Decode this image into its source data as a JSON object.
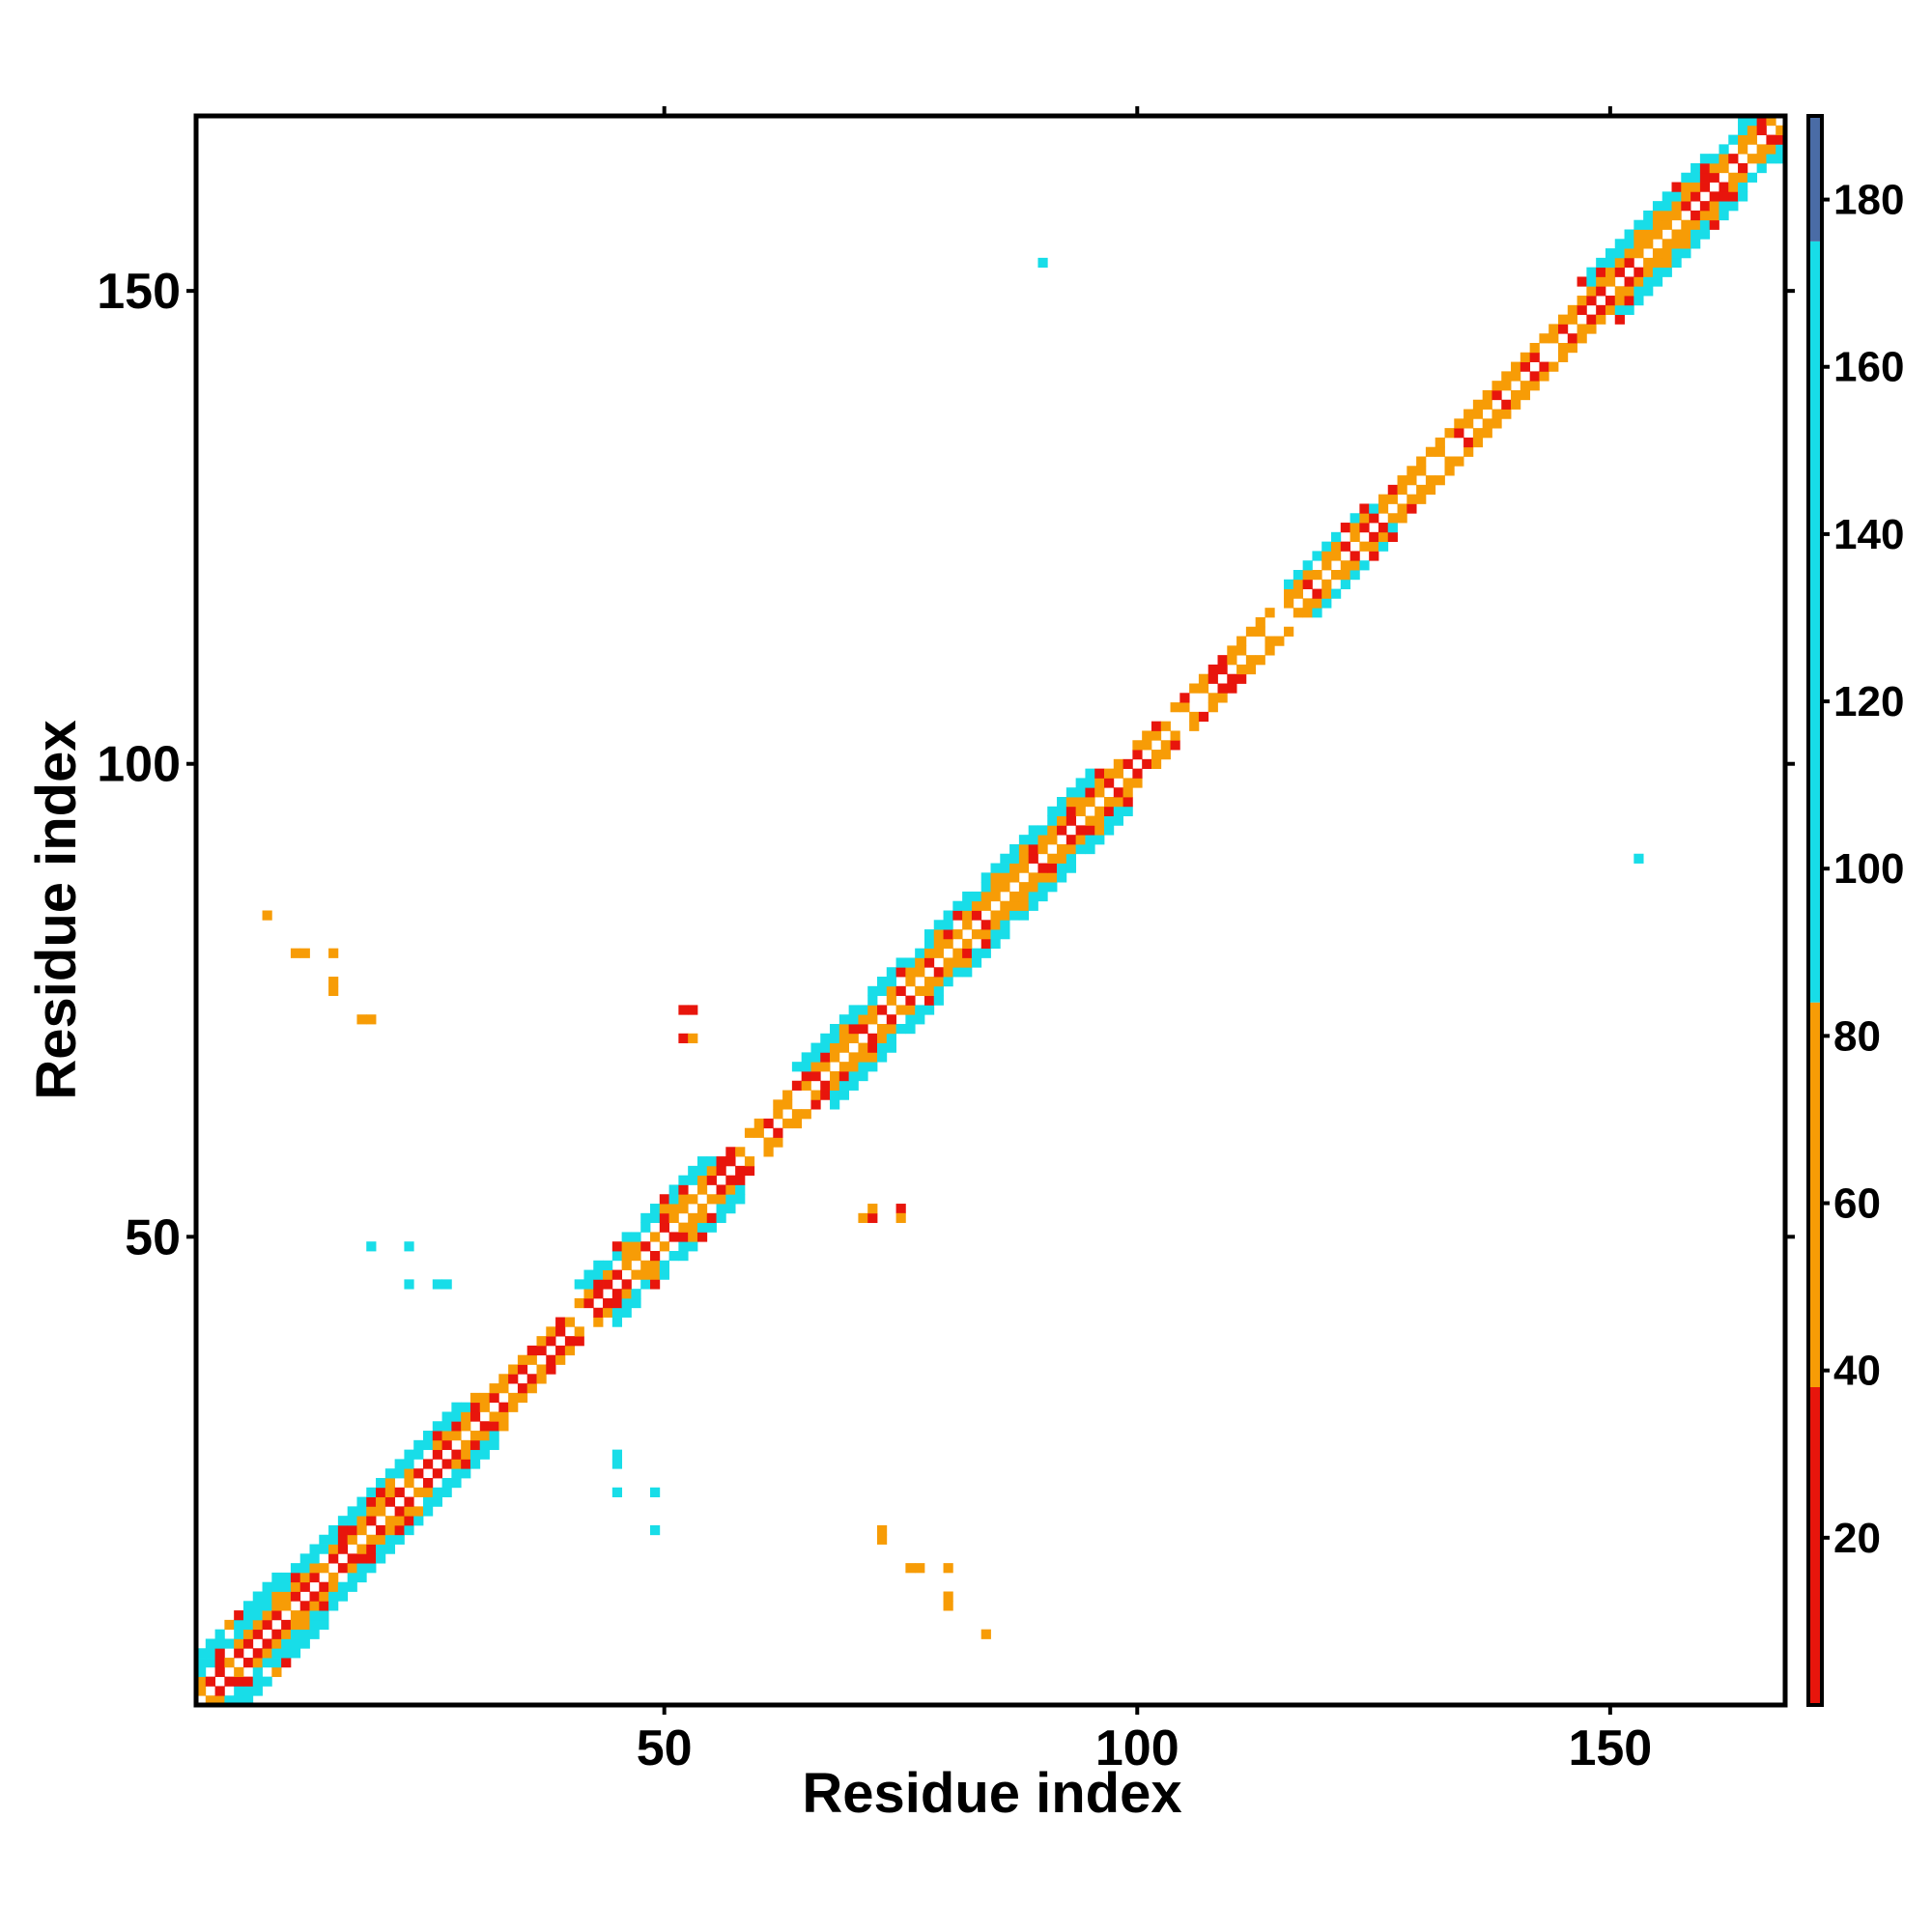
{
  "chart_data": {
    "type": "heatmap",
    "title": "",
    "xlabel": "Residue index",
    "ylabel": "Residue index",
    "xlim": [
      1,
      168
    ],
    "ylim": [
      1,
      168
    ],
    "x_ticks": [
      50,
      100,
      150
    ],
    "y_ticks": [
      50,
      100,
      150
    ],
    "grid": false,
    "colorbar": {
      "orientation": "vertical",
      "placement": "right",
      "range": [
        0,
        190
      ],
      "ticks": [
        20,
        40,
        60,
        80,
        100,
        120,
        140,
        160,
        180
      ],
      "segments": [
        {
          "from": 0,
          "to": 38,
          "color": "#e8150c"
        },
        {
          "from": 38,
          "to": 84,
          "color": "#f79c06"
        },
        {
          "from": 84,
          "to": 175,
          "color": "#18dde8"
        },
        {
          "from": 175,
          "to": 190,
          "color": "#4a6ca6"
        }
      ]
    },
    "colors": {
      "red": "#e8150c",
      "orange": "#f79c06",
      "cyan": "#18dde8"
    },
    "diagonal_band": {
      "description_values": "symmetric contact band along the diagonal; alternating red/orange/cyan cells",
      "segments": [
        {
          "from": 1,
          "to": 12,
          "half_width": 5,
          "class": "beta"
        },
        {
          "from": 12,
          "to": 32,
          "half_width": 4,
          "class": "beta"
        },
        {
          "from": 32,
          "to": 43,
          "half_width": 2,
          "class": "alpha"
        },
        {
          "from": 43,
          "to": 57,
          "half_width": 4,
          "class": "beta"
        },
        {
          "from": 57,
          "to": 66,
          "half_width": 2,
          "class": "alpha"
        },
        {
          "from": 66,
          "to": 98,
          "half_width": 4,
          "class": "beta"
        },
        {
          "from": 98,
          "to": 117,
          "half_width": 2,
          "class": "alpha"
        },
        {
          "from": 117,
          "to": 126,
          "half_width": 3,
          "class": "beta"
        },
        {
          "from": 126,
          "to": 149,
          "half_width": 2,
          "class": "alpha"
        },
        {
          "from": 149,
          "to": 168,
          "half_width": 4,
          "class": "beta"
        }
      ]
    },
    "off_diagonal_points": [
      {
        "x": 8,
        "y": 84,
        "value": 70
      },
      {
        "x": 11,
        "y": 80,
        "value": 65
      },
      {
        "x": 12,
        "y": 80,
        "value": 60
      },
      {
        "x": 15,
        "y": 80,
        "value": 50
      },
      {
        "x": 15,
        "y": 77,
        "value": 70
      },
      {
        "x": 15,
        "y": 76,
        "value": 55
      },
      {
        "x": 18,
        "y": 73,
        "value": 70
      },
      {
        "x": 19,
        "y": 73,
        "value": 55
      },
      {
        "x": 19,
        "y": 49,
        "value": 110
      },
      {
        "x": 23,
        "y": 49,
        "value": 110
      },
      {
        "x": 23,
        "y": 45,
        "value": 110
      },
      {
        "x": 26,
        "y": 45,
        "value": 110
      },
      {
        "x": 27,
        "y": 45,
        "value": 110
      },
      {
        "x": 45,
        "y": 26,
        "value": 110
      },
      {
        "x": 45,
        "y": 27,
        "value": 110
      },
      {
        "x": 45,
        "y": 23,
        "value": 110
      },
      {
        "x": 49,
        "y": 23,
        "value": 110
      },
      {
        "x": 49,
        "y": 19,
        "value": 110
      },
      {
        "x": 52,
        "y": 74,
        "value": 30
      },
      {
        "x": 53,
        "y": 74,
        "value": 30
      },
      {
        "x": 52,
        "y": 71,
        "value": 30
      },
      {
        "x": 53,
        "y": 71,
        "value": 60
      },
      {
        "x": 71,
        "y": 52,
        "value": 60
      },
      {
        "x": 72,
        "y": 52,
        "value": 30
      },
      {
        "x": 72,
        "y": 53,
        "value": 70
      },
      {
        "x": 75,
        "y": 53,
        "value": 30
      },
      {
        "x": 75,
        "y": 52,
        "value": 60
      },
      {
        "x": 73,
        "y": 18,
        "value": 55
      },
      {
        "x": 73,
        "y": 19,
        "value": 70
      },
      {
        "x": 77,
        "y": 15,
        "value": 55
      },
      {
        "x": 76,
        "y": 15,
        "value": 70
      },
      {
        "x": 80,
        "y": 15,
        "value": 50
      },
      {
        "x": 80,
        "y": 12,
        "value": 60
      },
      {
        "x": 80,
        "y": 11,
        "value": 65
      },
      {
        "x": 84,
        "y": 8,
        "value": 70
      },
      {
        "x": 90,
        "y": 153,
        "value": 110
      },
      {
        "x": 153,
        "y": 90,
        "value": 110
      }
    ]
  }
}
